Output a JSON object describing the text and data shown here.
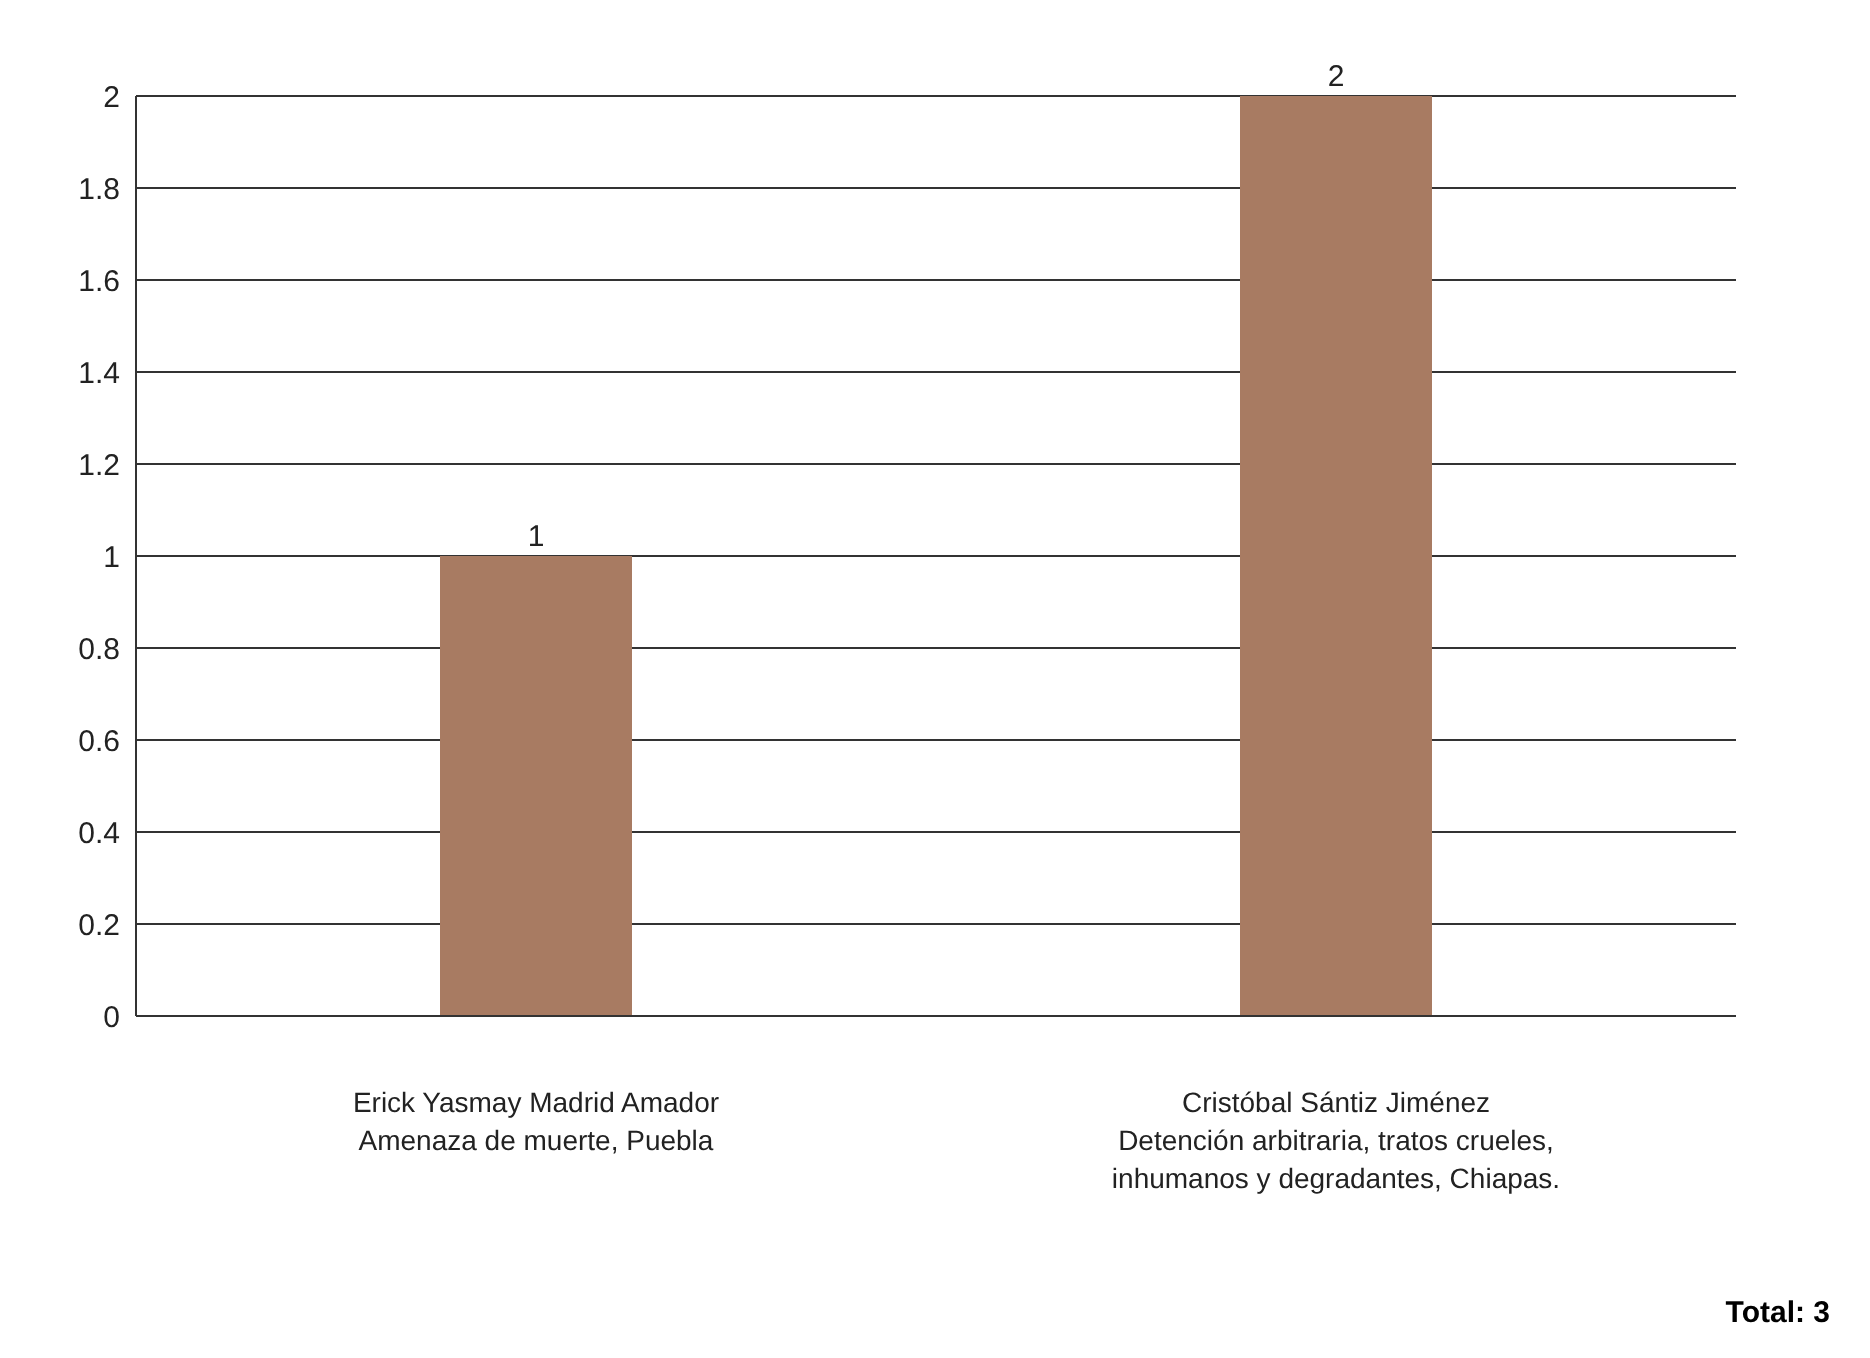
{
  "chart_data": {
    "type": "bar",
    "categories": [
      "Erick Yasmay Madrid Amador\nAmenaza de muerte, Puebla",
      "Cristóbal Sántiz Jiménez\nDetención arbitraria, tratos crueles,\ninhumanos y degradantes, Chiapas."
    ],
    "values": [
      1,
      2
    ],
    "color": "#a87b62",
    "ylim": [
      0,
      2
    ],
    "yticks": [
      0,
      0.2,
      0.4,
      0.6,
      0.8,
      1,
      1.2,
      1.4,
      1.6,
      1.8,
      2
    ],
    "grid": "y",
    "data_labels": true,
    "annotations": [
      "Total: 3"
    ]
  }
}
